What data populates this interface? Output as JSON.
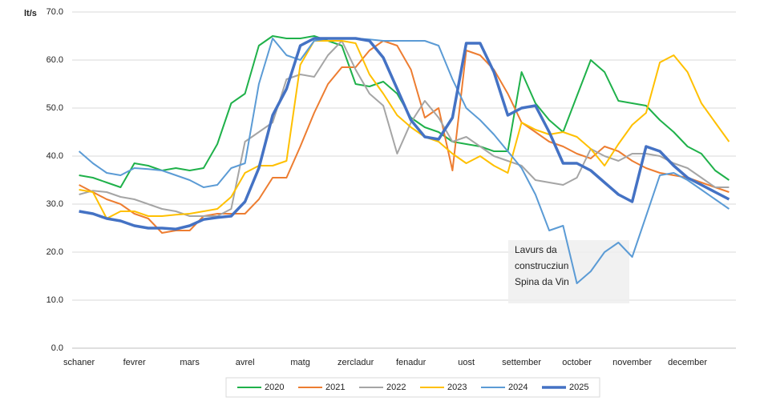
{
  "chart_data": {
    "type": "line",
    "y_label": "lt/s",
    "categories": [
      "schaner",
      null,
      null,
      null,
      "fevrer",
      null,
      null,
      null,
      "mars",
      null,
      null,
      null,
      "avrel",
      null,
      null,
      null,
      "matg",
      null,
      null,
      null,
      "zercladur",
      null,
      null,
      null,
      "fenadur",
      null,
      null,
      null,
      "uost",
      null,
      null,
      null,
      "settember",
      null,
      null,
      null,
      "october",
      null,
      null,
      null,
      "november",
      null,
      null,
      null,
      "december",
      null,
      null,
      null
    ],
    "ylim": [
      0,
      70
    ],
    "yticks": [
      {
        "value": 0,
        "label": "0.0"
      },
      {
        "value": 10,
        "label": "10.0"
      },
      {
        "value": 20,
        "label": "20.0"
      },
      {
        "value": 30,
        "label": "30.0"
      },
      {
        "value": 40,
        "label": "40.0"
      },
      {
        "value": 50,
        "label": "50.0"
      },
      {
        "value": 60,
        "label": "60.0"
      },
      {
        "value": 70,
        "label": "70.0"
      }
    ],
    "grid": true,
    "legend": "bottom",
    "annotation": [
      "Lavurs da",
      "construcziun",
      "Spina da Vin"
    ],
    "annotation_color": "#e8191e",
    "series": [
      {
        "name": "2020",
        "color": "#1fb14a",
        "values": [
          36,
          35.5,
          34.5,
          33.5,
          38.5,
          38,
          37,
          37.5,
          37,
          37.5,
          42.5,
          51,
          53,
          63,
          65,
          64.5,
          64.5,
          65,
          64,
          63,
          55,
          54.5,
          55.5,
          53,
          48,
          46,
          45,
          43,
          42.5,
          42,
          41,
          41,
          57.5,
          51,
          47.5,
          45,
          52.5,
          60,
          57.5,
          51.5,
          51,
          50.5,
          47.5,
          45,
          42,
          40.5,
          37,
          35
        ]
      },
      {
        "name": "2021",
        "color": "#ed7d31",
        "values": [
          34,
          32.5,
          31,
          30,
          28,
          27,
          24,
          24.5,
          24.5,
          27.5,
          28,
          28,
          28,
          31,
          35.5,
          35.5,
          42,
          49,
          55,
          58.5,
          58.5,
          62,
          64,
          63,
          58,
          48,
          50,
          37,
          62,
          61,
          58,
          53,
          47,
          45,
          43,
          42,
          40.5,
          39.5,
          42,
          41,
          39,
          37.5,
          36.5,
          36,
          35.5,
          34.5,
          33.5,
          32.5
        ]
      },
      {
        "name": "2022",
        "color": "#a5a5a5",
        "values": [
          32,
          32.8,
          32.5,
          31.5,
          31,
          30,
          29,
          28.5,
          27.5,
          27.5,
          27.5,
          29,
          43,
          45,
          47,
          56,
          57,
          56.5,
          61,
          64,
          58,
          53,
          50.5,
          40.5,
          47,
          51.5,
          48,
          43,
          44,
          42,
          40,
          39,
          38,
          35,
          34.5,
          34,
          35.5,
          41.5,
          40,
          39,
          40.5,
          40.5,
          40,
          38.5,
          37.5,
          35.5,
          33.5,
          33.5
        ]
      },
      {
        "name": "2023",
        "color": "#ffc000",
        "values": [
          33,
          32.5,
          27,
          28.5,
          28.5,
          27.5,
          27.5,
          27.8,
          28,
          28.5,
          29,
          31.5,
          36.5,
          38,
          38,
          39,
          59,
          64,
          64,
          64,
          63.5,
          57,
          53,
          48.5,
          46,
          44,
          43,
          40.5,
          38.5,
          40,
          38,
          36.5,
          47,
          45.5,
          44.5,
          45,
          44,
          41.5,
          38,
          42.5,
          46.5,
          49,
          59.5,
          61,
          57.5,
          51,
          47,
          43
        ]
      },
      {
        "name": "2024",
        "color": "#5b9bd5",
        "values": [
          41,
          38.5,
          36.5,
          36,
          37.5,
          37.3,
          37,
          36,
          35,
          33.5,
          34,
          37.5,
          38.5,
          55,
          64.5,
          61,
          60,
          64,
          64.5,
          64.5,
          64.5,
          64.3,
          64,
          64,
          64,
          64,
          63,
          56,
          50,
          47.5,
          44.5,
          41,
          37.5,
          32,
          24.5,
          25.5,
          13.5,
          16,
          20,
          22,
          19,
          27.5,
          36,
          36.5,
          35,
          33,
          31,
          29
        ]
      },
      {
        "name": "2025",
        "color": "#4472c4",
        "width": 3.5,
        "values": [
          28.5,
          28,
          27,
          26.5,
          25.5,
          25,
          25,
          24.8,
          25.5,
          26.8,
          27.2,
          27.5,
          30.5,
          37.5,
          48.5,
          54,
          63,
          64.5,
          64.5,
          64.5,
          64.5,
          64,
          60.5,
          54,
          47.5,
          44,
          43.5,
          48,
          63.5,
          63.5,
          57.5,
          48.5,
          50,
          50.5,
          45,
          38.5,
          38.5,
          37,
          34.5,
          32,
          30.5,
          42,
          41,
          38,
          35.5,
          34,
          32.5,
          31
        ]
      }
    ]
  }
}
